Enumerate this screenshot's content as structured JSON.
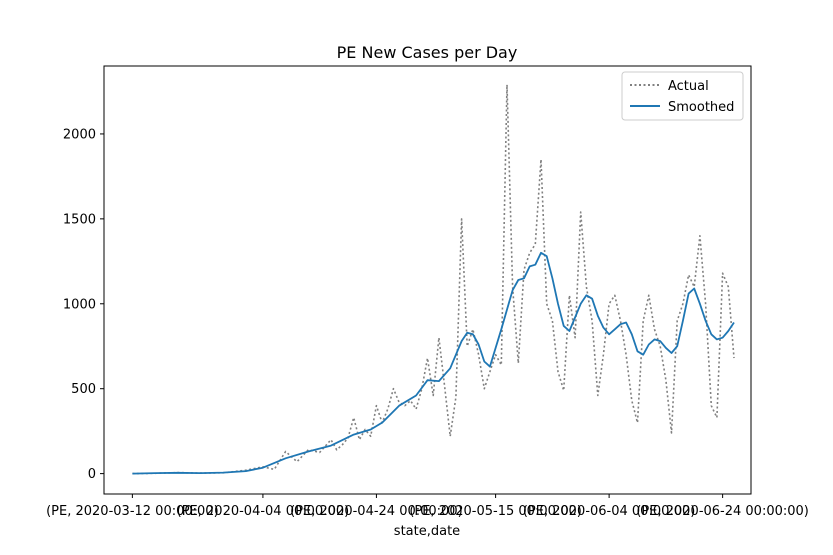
{
  "chart_data": {
    "type": "line",
    "title": "PE New Cases per Day",
    "xlabel": "state,date",
    "ylabel": "",
    "xlim": [
      "2020-03-07",
      "2020-06-29"
    ],
    "ylim": [
      -120,
      2400
    ],
    "x_ticks": [
      {
        "date": "2020-03-12",
        "label": "(PE, 2020-03-12 00:00:00)"
      },
      {
        "date": "2020-04-04",
        "label": "(PE, 2020-04-04 00:00:00)"
      },
      {
        "date": "2020-04-24",
        "label": "(PE, 2020-04-24 00:00:00)"
      },
      {
        "date": "2020-05-15",
        "label": "(PE, 2020-05-15 00:00:00)"
      },
      {
        "date": "2020-06-04",
        "label": "(PE, 2020-06-04 00:00:00)"
      },
      {
        "date": "2020-06-24",
        "label": "(PE, 2020-06-24 00:00:00)"
      }
    ],
    "y_ticks": [
      {
        "value": 0,
        "label": "0"
      },
      {
        "value": 500,
        "label": "500"
      },
      {
        "value": 1000,
        "label": "1000"
      },
      {
        "value": 1500,
        "label": "1500"
      },
      {
        "value": 2000,
        "label": "2000"
      }
    ],
    "grid": false,
    "legend_position": "top-right",
    "series": [
      {
        "name": "Actual",
        "color": "#808080",
        "style": "dotted",
        "points": [
          [
            "2020-03-12",
            0
          ],
          [
            "2020-03-16",
            2
          ],
          [
            "2020-03-20",
            6
          ],
          [
            "2020-03-24",
            3
          ],
          [
            "2020-03-28",
            5
          ],
          [
            "2020-04-01",
            20
          ],
          [
            "2020-04-04",
            40
          ],
          [
            "2020-04-06",
            25
          ],
          [
            "2020-04-08",
            130
          ],
          [
            "2020-04-10",
            70
          ],
          [
            "2020-04-12",
            140
          ],
          [
            "2020-04-14",
            125
          ],
          [
            "2020-04-16",
            200
          ],
          [
            "2020-04-17",
            140
          ],
          [
            "2020-04-18",
            170
          ],
          [
            "2020-04-19",
            210
          ],
          [
            "2020-04-20",
            330
          ],
          [
            "2020-04-21",
            200
          ],
          [
            "2020-04-22",
            260
          ],
          [
            "2020-04-23",
            220
          ],
          [
            "2020-04-24",
            400
          ],
          [
            "2020-04-25",
            300
          ],
          [
            "2020-04-26",
            380
          ],
          [
            "2020-04-27",
            500
          ],
          [
            "2020-04-28",
            420
          ],
          [
            "2020-04-29",
            400
          ],
          [
            "2020-04-30",
            430
          ],
          [
            "2020-05-01",
            380
          ],
          [
            "2020-05-02",
            500
          ],
          [
            "2020-05-03",
            680
          ],
          [
            "2020-05-04",
            460
          ],
          [
            "2020-05-05",
            800
          ],
          [
            "2020-05-06",
            520
          ],
          [
            "2020-05-07",
            220
          ],
          [
            "2020-05-08",
            450
          ],
          [
            "2020-05-09",
            1500
          ],
          [
            "2020-05-10",
            750
          ],
          [
            "2020-05-11",
            850
          ],
          [
            "2020-05-12",
            700
          ],
          [
            "2020-05-13",
            500
          ],
          [
            "2020-05-14",
            600
          ],
          [
            "2020-05-15",
            700
          ],
          [
            "2020-05-16",
            640
          ],
          [
            "2020-05-17",
            2290
          ],
          [
            "2020-05-18",
            1100
          ],
          [
            "2020-05-19",
            650
          ],
          [
            "2020-05-20",
            1200
          ],
          [
            "2020-05-21",
            1300
          ],
          [
            "2020-05-22",
            1350
          ],
          [
            "2020-05-23",
            1850
          ],
          [
            "2020-05-24",
            1000
          ],
          [
            "2020-05-25",
            900
          ],
          [
            "2020-05-26",
            600
          ],
          [
            "2020-05-27",
            490
          ],
          [
            "2020-05-28",
            1050
          ],
          [
            "2020-05-29",
            800
          ],
          [
            "2020-05-30",
            1540
          ],
          [
            "2020-05-31",
            1100
          ],
          [
            "2020-06-01",
            900
          ],
          [
            "2020-06-02",
            460
          ],
          [
            "2020-06-03",
            700
          ],
          [
            "2020-06-04",
            1000
          ],
          [
            "2020-06-05",
            1050
          ],
          [
            "2020-06-06",
            900
          ],
          [
            "2020-06-07",
            700
          ],
          [
            "2020-06-08",
            430
          ],
          [
            "2020-06-09",
            300
          ],
          [
            "2020-06-10",
            900
          ],
          [
            "2020-06-11",
            1050
          ],
          [
            "2020-06-12",
            850
          ],
          [
            "2020-06-13",
            750
          ],
          [
            "2020-06-14",
            550
          ],
          [
            "2020-06-15",
            240
          ],
          [
            "2020-06-16",
            900
          ],
          [
            "2020-06-17",
            1000
          ],
          [
            "2020-06-18",
            1170
          ],
          [
            "2020-06-19",
            1100
          ],
          [
            "2020-06-20",
            1400
          ],
          [
            "2020-06-21",
            1000
          ],
          [
            "2020-06-22",
            400
          ],
          [
            "2020-06-23",
            330
          ],
          [
            "2020-06-24",
            1180
          ],
          [
            "2020-06-25",
            1100
          ],
          [
            "2020-06-26",
            680
          ]
        ]
      },
      {
        "name": "Smoothed",
        "color": "#1f77b4",
        "style": "solid",
        "points": [
          [
            "2020-03-12",
            0
          ],
          [
            "2020-03-16",
            3
          ],
          [
            "2020-03-20",
            5
          ],
          [
            "2020-03-24",
            3
          ],
          [
            "2020-03-28",
            6
          ],
          [
            "2020-04-01",
            15
          ],
          [
            "2020-04-04",
            35
          ],
          [
            "2020-04-08",
            90
          ],
          [
            "2020-04-12",
            130
          ],
          [
            "2020-04-16",
            165
          ],
          [
            "2020-04-20",
            230
          ],
          [
            "2020-04-23",
            260
          ],
          [
            "2020-04-25",
            300
          ],
          [
            "2020-04-28",
            400
          ],
          [
            "2020-05-01",
            460
          ],
          [
            "2020-05-03",
            550
          ],
          [
            "2020-05-05",
            545
          ],
          [
            "2020-05-07",
            620
          ],
          [
            "2020-05-09",
            780
          ],
          [
            "2020-05-10",
            830
          ],
          [
            "2020-05-11",
            820
          ],
          [
            "2020-05-12",
            760
          ],
          [
            "2020-05-13",
            660
          ],
          [
            "2020-05-14",
            630
          ],
          [
            "2020-05-16",
            850
          ],
          [
            "2020-05-18",
            1080
          ],
          [
            "2020-05-19",
            1140
          ],
          [
            "2020-05-20",
            1150
          ],
          [
            "2020-05-21",
            1220
          ],
          [
            "2020-05-22",
            1230
          ],
          [
            "2020-05-23",
            1300
          ],
          [
            "2020-05-24",
            1280
          ],
          [
            "2020-05-25",
            1150
          ],
          [
            "2020-05-26",
            1000
          ],
          [
            "2020-05-27",
            870
          ],
          [
            "2020-05-28",
            840
          ],
          [
            "2020-05-29",
            920
          ],
          [
            "2020-05-30",
            1000
          ],
          [
            "2020-05-31",
            1050
          ],
          [
            "2020-06-01",
            1030
          ],
          [
            "2020-06-02",
            930
          ],
          [
            "2020-06-03",
            860
          ],
          [
            "2020-06-04",
            820
          ],
          [
            "2020-06-05",
            850
          ],
          [
            "2020-06-06",
            880
          ],
          [
            "2020-06-07",
            890
          ],
          [
            "2020-06-08",
            820
          ],
          [
            "2020-06-09",
            720
          ],
          [
            "2020-06-10",
            700
          ],
          [
            "2020-06-11",
            760
          ],
          [
            "2020-06-12",
            790
          ],
          [
            "2020-06-13",
            780
          ],
          [
            "2020-06-14",
            740
          ],
          [
            "2020-06-15",
            710
          ],
          [
            "2020-06-16",
            750
          ],
          [
            "2020-06-17",
            900
          ],
          [
            "2020-06-18",
            1060
          ],
          [
            "2020-06-19",
            1090
          ],
          [
            "2020-06-20",
            1000
          ],
          [
            "2020-06-21",
            900
          ],
          [
            "2020-06-22",
            820
          ],
          [
            "2020-06-23",
            790
          ],
          [
            "2020-06-24",
            800
          ],
          [
            "2020-06-25",
            840
          ],
          [
            "2020-06-26",
            890
          ]
        ]
      }
    ]
  }
}
